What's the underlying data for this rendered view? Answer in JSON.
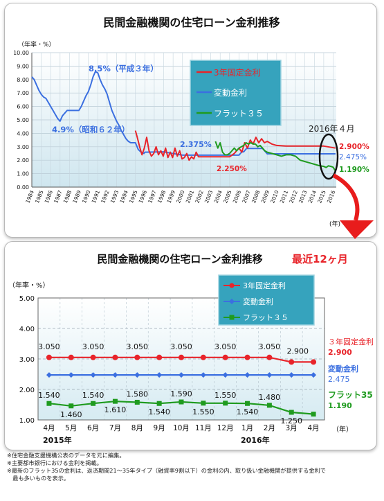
{
  "colors": {
    "fixed3y": "#e8242a",
    "variable": "#3b6fe0",
    "flat35": "#1f9b1f",
    "legend_bg": "#36a3bd",
    "arrow": "#e81c1c"
  },
  "notes": [
    "※住宅金融支援機構公表のデータを元に編集。",
    "※主要都市銀行における金利を掲載。",
    "※最新のフラット35の金利は、返済期間21～35年タイプ（融資率9割以下）の金利の内、取り扱い金融機関が提供する金利で",
    "　最も多いものを表示。"
  ],
  "chart_data": [
    {
      "type": "line",
      "title": "民間金融機関の住宅ローン金利推移",
      "ylabel": "（年率・%）",
      "xlabel_unit": "(年)",
      "ylim": [
        0,
        10
      ],
      "yticks": [
        "0.00",
        "1.00",
        "2.00",
        "3.00",
        "4.00",
        "5.00",
        "6.00",
        "7.00",
        "8.00",
        "9.00",
        "10.00"
      ],
      "xlim": [
        1984,
        2016.33
      ],
      "xticks": [
        "1984",
        "1985",
        "1986",
        "1987",
        "1988",
        "1989",
        "1990",
        "1991",
        "1992",
        "1993",
        "1994",
        "1995",
        "1996",
        "1997",
        "1998",
        "1999",
        "2000",
        "2001",
        "2002",
        "2003",
        "2004",
        "2005",
        "2006",
        "2007",
        "2008",
        "2009",
        "2010",
        "2011",
        "2012",
        "2013",
        "2014",
        "2015",
        "2016"
      ],
      "grid": true,
      "legend_position": "top-right",
      "legend": [
        "3年固定金利",
        "変動金利",
        "フラット３５"
      ],
      "series": [
        {
          "name": "変動金利",
          "x": [
            1984,
            1984.25,
            1984.5,
            1984.75,
            1985,
            1985.25,
            1985.5,
            1985.75,
            1986,
            1986.25,
            1986.5,
            1986.75,
            1987,
            1987.25,
            1987.5,
            1987.75,
            1988,
            1988.5,
            1989,
            1989.25,
            1989.5,
            1989.75,
            1990,
            1990.25,
            1990.5,
            1990.75,
            1991,
            1991.25,
            1991.5,
            1991.75,
            1992,
            1992.25,
            1992.5,
            1992.75,
            1993,
            1993.25,
            1993.5,
            1993.75,
            1994,
            1994.25,
            1994.5,
            1994.75,
            1995,
            1995.3,
            1995.6,
            1995.9,
            1996,
            1998,
            2000,
            2001,
            2002,
            2005,
            2006,
            2006.3,
            2006.5,
            2006.8,
            2007,
            2007.5,
            2008,
            2008.5,
            2009,
            2010,
            2012,
            2014,
            2016.25
          ],
          "values": [
            8.2,
            8.0,
            7.6,
            7.2,
            6.9,
            6.7,
            6.6,
            6.3,
            6.0,
            5.7,
            5.4,
            5.1,
            4.9,
            5.3,
            5.5,
            5.7,
            5.7,
            5.7,
            5.7,
            6.0,
            6.4,
            6.8,
            7.1,
            7.6,
            8.2,
            8.6,
            8.5,
            8.0,
            7.6,
            7.3,
            6.9,
            6.3,
            5.7,
            5.3,
            4.9,
            4.6,
            4.2,
            3.9,
            3.6,
            3.4,
            3.3,
            3.3,
            3.3,
            2.8,
            2.6,
            2.5,
            2.6,
            2.625,
            2.375,
            2.375,
            2.375,
            2.375,
            2.375,
            2.625,
            2.625,
            2.875,
            2.875,
            2.875,
            2.875,
            2.875,
            2.475,
            2.475,
            2.475,
            2.475,
            2.475
          ]
        },
        {
          "name": "3年固定金利",
          "x": [
            1995,
            1995.2,
            1995.45,
            1995.7,
            1995.95,
            1996.2,
            1996.45,
            1996.7,
            1996.95,
            1997.2,
            1997.45,
            1997.7,
            1997.95,
            1998.2,
            1998.45,
            1998.7,
            1998.95,
            1999.2,
            1999.45,
            1999.7,
            1999.95,
            2000.2,
            2000.45,
            2000.7,
            2000.95,
            2001.2,
            2001.45,
            2001.7,
            2001.95,
            2002.5,
            2003,
            2003.5,
            2004,
            2004.5,
            2005,
            2005.5,
            2006,
            2006.3,
            2006.6,
            2006.9,
            2007.2,
            2007.5,
            2007.8,
            2008.1,
            2008.4,
            2008.7,
            2009,
            2009.5,
            2010,
            2011,
            2012,
            2013,
            2014,
            2015,
            2016.25
          ],
          "values": [
            4.2,
            3.7,
            3.0,
            2.4,
            2.9,
            3.7,
            2.7,
            2.3,
            2.5,
            3.0,
            2.4,
            2.7,
            2.3,
            2.9,
            2.2,
            2.6,
            2.2,
            2.9,
            2.3,
            2.7,
            2.1,
            2.2,
            2.5,
            2.0,
            2.25,
            2.1,
            2.6,
            2.25,
            2.25,
            2.25,
            2.25,
            2.25,
            2.25,
            2.25,
            2.25,
            2.5,
            2.9,
            2.6,
            3.3,
            2.9,
            3.5,
            3.2,
            3.7,
            3.3,
            3.6,
            3.3,
            3.4,
            3.2,
            3.1,
            3.05,
            3.05,
            3.05,
            3.05,
            3.05,
            2.9
          ]
        },
        {
          "name": "フラット３５",
          "x": [
            2003.5,
            2003.75,
            2004,
            2004.25,
            2004.5,
            2004.75,
            2005,
            2005.25,
            2005.5,
            2005.75,
            2006,
            2006.25,
            2006.5,
            2006.75,
            2007,
            2007.25,
            2007.5,
            2007.75,
            2008,
            2008.25,
            2008.5,
            2008.75,
            2009,
            2009.5,
            2010,
            2010.5,
            2011,
            2011.5,
            2012,
            2012.5,
            2013,
            2013.5,
            2014,
            2014.5,
            2015,
            2015.25,
            2015.5,
            2015.75,
            2016,
            2016.25
          ],
          "values": [
            3.4,
            2.9,
            3.3,
            2.6,
            2.4,
            2.4,
            2.5,
            2.7,
            2.9,
            2.7,
            2.9,
            3.0,
            3.1,
            3.3,
            3.2,
            3.3,
            3.2,
            3.2,
            3.0,
            3.1,
            2.9,
            2.7,
            2.6,
            2.5,
            2.4,
            2.3,
            2.4,
            2.4,
            2.3,
            2.0,
            1.9,
            1.8,
            1.7,
            1.6,
            1.54,
            1.46,
            1.58,
            1.54,
            1.48,
            1.19
          ]
        }
      ],
      "annotations": [
        {
          "text": "8.5%（平成３年）",
          "color": "#3b6fe0"
        },
        {
          "text": "4.9%（昭和６２年）",
          "color": "#3b6fe0"
        },
        {
          "text": "2.375%",
          "color": "#3b6fe0"
        },
        {
          "text": "2.250%",
          "color": "#e8242a"
        },
        {
          "text": "2016年４月",
          "color": "#222222"
        },
        {
          "text": "2.900%",
          "color": "#e8242a"
        },
        {
          "text": "2.475%",
          "color": "#3b6fe0"
        },
        {
          "text": "1.190%",
          "color": "#1f9b1f"
        }
      ]
    },
    {
      "type": "line",
      "title": "民間金融機関の住宅ローン金利推移",
      "title_highlight": "最近12ヶ月",
      "ylabel": "（年率・%）",
      "xlabel_unit": "（年）",
      "ylim": [
        1.0,
        5.0
      ],
      "yticks": [
        "1.00",
        "2.00",
        "3.00",
        "4.00",
        "5.00"
      ],
      "categories": [
        "4月",
        "5月",
        "6月",
        "7月",
        "8月",
        "9月",
        "10月",
        "11月",
        "12月",
        "1月",
        "2月",
        "3月",
        "4月"
      ],
      "year_labels": [
        "2015年",
        "2016年"
      ],
      "grid": true,
      "legend_position": "top-center",
      "legend": [
        "3年固定金利",
        "変動金利",
        "フラット３５"
      ],
      "series": [
        {
          "name": "3年固定金利",
          "values": [
            3.05,
            3.05,
            3.05,
            3.05,
            3.05,
            3.05,
            3.05,
            3.05,
            3.05,
            3.05,
            3.05,
            2.9,
            2.9
          ]
        },
        {
          "name": "変動金利",
          "values": [
            2.475,
            2.475,
            2.475,
            2.475,
            2.475,
            2.475,
            2.475,
            2.475,
            2.475,
            2.475,
            2.475,
            2.475,
            2.475
          ]
        },
        {
          "name": "フラット３５",
          "values": [
            1.54,
            1.46,
            1.54,
            1.61,
            1.58,
            1.54,
            1.59,
            1.55,
            1.55,
            1.54,
            1.48,
            1.25,
            1.19
          ]
        }
      ],
      "data_labels": {
        "fixed": [
          "3.050",
          "3.050",
          "3.050",
          "3.050",
          "3.050",
          "3.050",
          "2.900"
        ],
        "flat": [
          "1.540",
          "1.460",
          "1.540",
          "1.610",
          "1.580",
          "1.540",
          "1.590",
          "1.550",
          "1.550",
          "1.540",
          "1.480",
          "1.250"
        ]
      },
      "end_labels": [
        {
          "title": "３年固定金利",
          "value": "2.900",
          "color": "#e8242a"
        },
        {
          "title": "変動金利",
          "value": "2.475",
          "color": "#3b6fe0"
        },
        {
          "title": "フラット35",
          "value": "1.190",
          "color": "#1f9b1f"
        }
      ]
    }
  ]
}
